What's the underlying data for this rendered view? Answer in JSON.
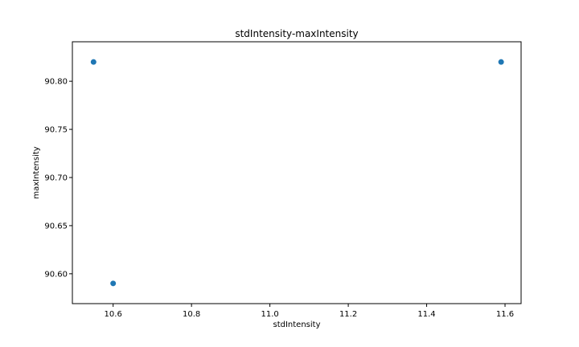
{
  "chart_data": {
    "type": "scatter",
    "title": "stdIntensity-maxIntensity",
    "xlabel": "stdIntensity",
    "ylabel": "maxIntensity",
    "xlim": [
      10.496,
      11.641
    ],
    "ylim": [
      90.569,
      90.841
    ],
    "xticks": [
      10.6,
      10.8,
      11.0,
      11.2,
      11.4,
      11.6
    ],
    "xtick_labels": [
      "10.6",
      "10.8",
      "11.0",
      "11.2",
      "11.4",
      "11.6"
    ],
    "yticks": [
      90.6,
      90.65,
      90.7,
      90.75,
      90.8
    ],
    "ytick_labels": [
      "90.60",
      "90.65",
      "90.70",
      "90.75",
      "90.80"
    ],
    "grid": false,
    "marker_color": "#1f77b4",
    "points": [
      {
        "x": 10.55,
        "y": 90.82
      },
      {
        "x": 10.6,
        "y": 90.59
      },
      {
        "x": 11.59,
        "y": 90.82
      }
    ]
  }
}
